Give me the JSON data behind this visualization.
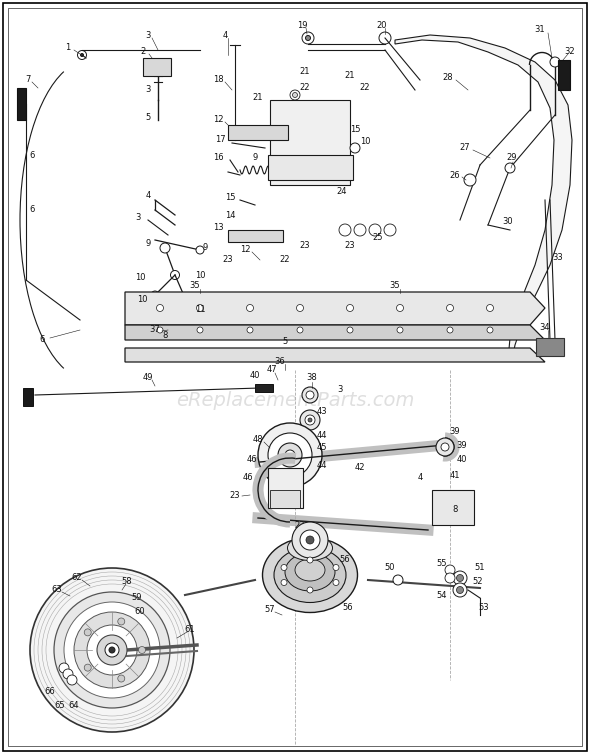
{
  "bg_color": "#ffffff",
  "border_color": "#000000",
  "watermark_text": "eReplacementParts.com",
  "fig_width": 5.9,
  "fig_height": 7.54,
  "dpi": 100,
  "line_color": "#1a1a1a",
  "label_color": "#111111",
  "light_gray": "#d8d8d8",
  "mid_gray": "#aaaaaa",
  "dark_gray": "#444444"
}
